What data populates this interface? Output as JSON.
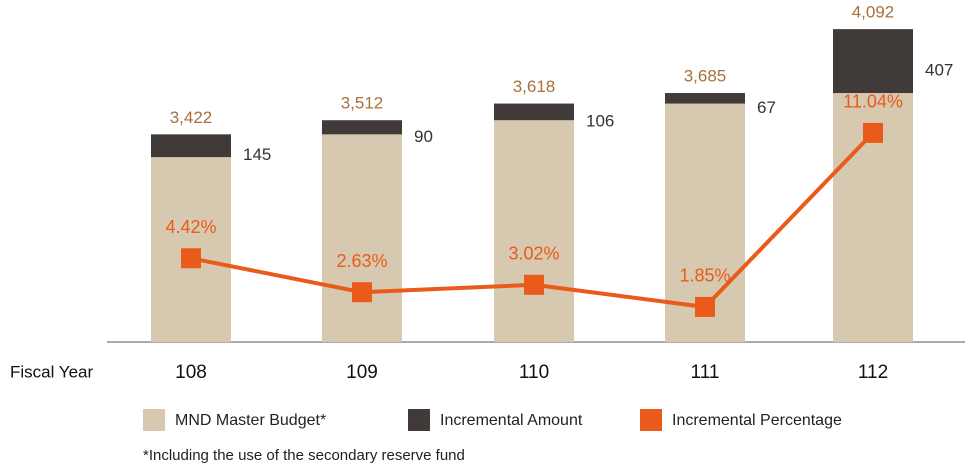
{
  "chart_data": {
    "type": "bar_line",
    "x_label": "Fiscal Year",
    "categories": [
      "108",
      "109",
      "110",
      "111",
      "112"
    ],
    "series": [
      {
        "name": "MND Master Budget*",
        "color": "#d6c9b0",
        "values": [
          3277,
          3422,
          3512,
          3618,
          3685
        ]
      },
      {
        "name": "Incremental Amount",
        "color": "#403a38",
        "values": [
          145,
          90,
          106,
          67,
          407
        ]
      },
      {
        "name": "Incremental Percentage",
        "color": "#ea5a1a",
        "axis": "y2",
        "values": [
          4.42,
          2.63,
          3.02,
          1.85,
          11.04
        ],
        "value_labels": [
          "4.42%",
          "2.63%",
          "3.02%",
          "1.85%",
          "11.04%"
        ]
      }
    ],
    "total_labels": [
      "3,422",
      "3,512",
      "3,618",
      "3,685",
      "4,092"
    ],
    "ylim": [
      2100,
      4150
    ],
    "y2lim": [
      0,
      17
    ],
    "note": "*Including the use of the secondary reserve fund"
  }
}
